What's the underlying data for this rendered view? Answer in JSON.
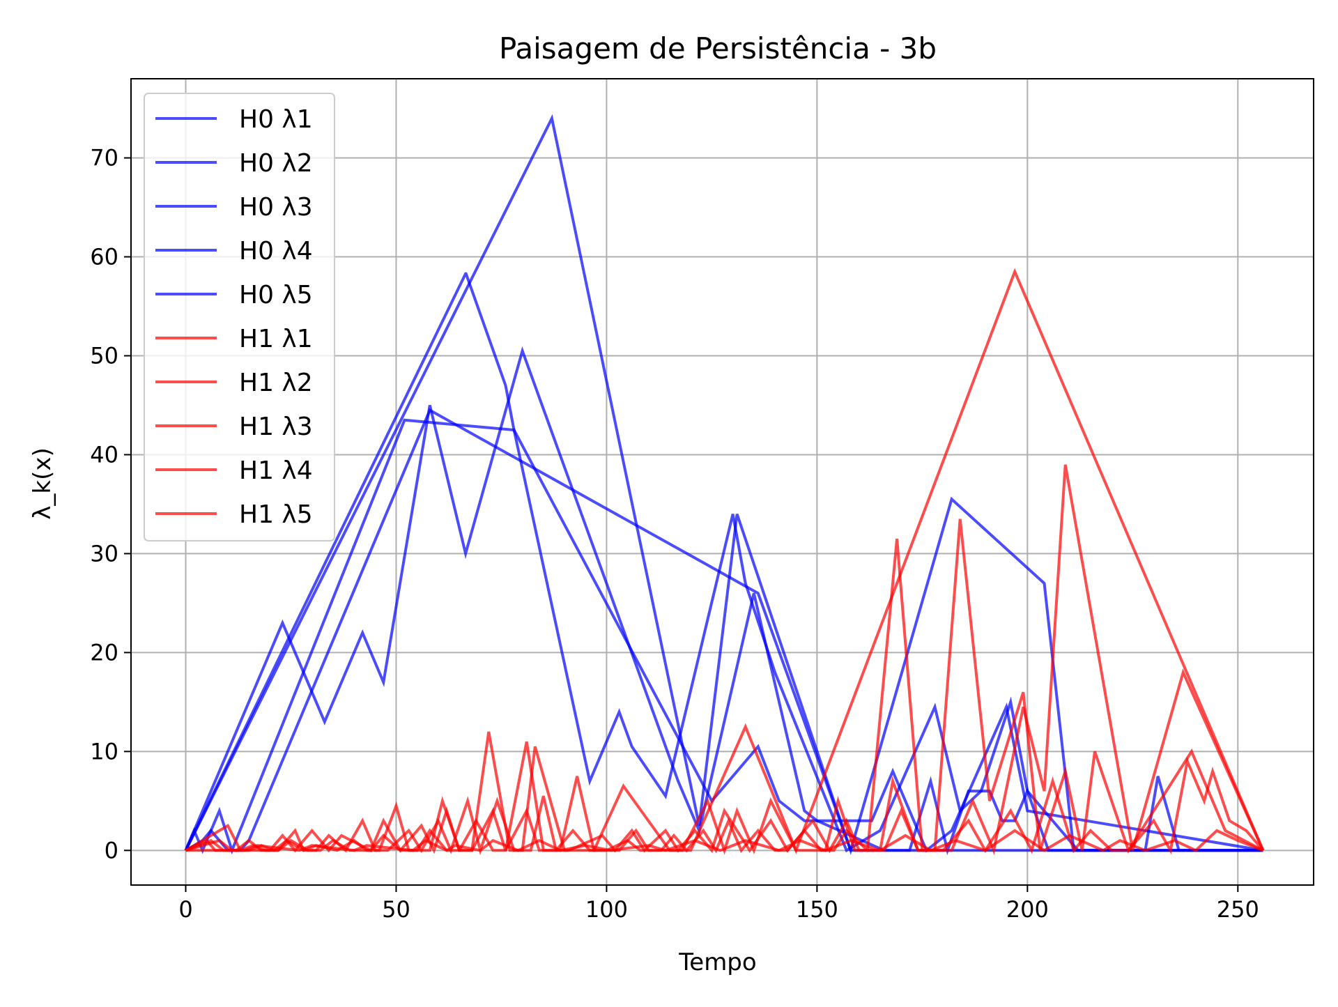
{
  "chart_data": {
    "type": "line",
    "title": "Paisagem de Persistência - 3b",
    "xlabel": "Tempo",
    "ylabel": "λ_k(x)",
    "xlim": [
      -13,
      268
    ],
    "ylim": [
      -3.5,
      78
    ],
    "xticks": [
      0,
      50,
      100,
      150,
      200,
      250
    ],
    "yticks": [
      0,
      10,
      20,
      30,
      40,
      50,
      60,
      70
    ],
    "grid": true,
    "legend_position": "upper-left",
    "colors": {
      "H0": "#0000ff",
      "H1": "#ff0000"
    },
    "series": [
      {
        "name": "H0 λ1",
        "group": "H0",
        "color": "#0000ff",
        "x": [
          0,
          87,
          122,
          131,
          154,
          158,
          182,
          204,
          211,
          256
        ],
        "y": [
          0,
          74,
          2.5,
          34,
          5,
          0,
          35.5,
          27,
          0,
          0
        ]
      },
      {
        "name": "H0 λ2",
        "group": "H0",
        "color": "#0000ff",
        "x": [
          0,
          66.5,
          66.6,
          76,
          78,
          96,
          103,
          106,
          114,
          130,
          133,
          140,
          157,
          165,
          178,
          184,
          189,
          196,
          200,
          212,
          256
        ],
        "y": [
          0,
          58.3,
          58.3,
          47,
          42.5,
          7,
          14,
          10.5,
          5.5,
          34,
          27,
          18,
          0,
          2,
          14.5,
          4,
          6,
          15,
          6,
          0,
          0
        ]
      },
      {
        "name": "H0 λ3",
        "group": "H0",
        "color": "#0000ff",
        "x": [
          0,
          23,
          33,
          42,
          47,
          58,
          66.5,
          80,
          117,
          122,
          135,
          147,
          150,
          166,
          172,
          177,
          181,
          186,
          191,
          194,
          197,
          200,
          205,
          228,
          231,
          236,
          256
        ],
        "y": [
          0,
          23,
          13,
          22,
          17,
          45,
          30,
          50.5,
          7,
          2,
          26,
          4,
          3,
          0,
          0,
          7,
          0,
          6,
          6,
          3,
          3,
          6,
          0,
          0,
          7.5,
          0,
          0
        ]
      },
      {
        "name": "H0 λ4",
        "group": "H0",
        "color": "#0000ff",
        "x": [
          0,
          2,
          4,
          8,
          11,
          52,
          78,
          125,
          136,
          141,
          147,
          163,
          168,
          176,
          182,
          195,
          200,
          256
        ],
        "y": [
          0,
          2,
          0,
          4,
          0,
          43.5,
          42.5,
          5,
          10.5,
          5,
          3,
          3,
          8,
          0,
          2,
          14.5,
          4,
          0
        ]
      },
      {
        "name": "H0 λ5",
        "group": "H0",
        "color": "#0000ff",
        "x": [
          0,
          4,
          6,
          8,
          10,
          13,
          15,
          58,
          136,
          158,
          169,
          256
        ],
        "y": [
          0,
          1,
          2,
          1,
          0,
          0,
          1,
          44.5,
          26,
          0,
          0,
          0
        ]
      },
      {
        "name": "H1 λ1",
        "group": "H1",
        "color": "#ff0000",
        "x": [
          0,
          10,
          13,
          20,
          23,
          26,
          30,
          34,
          37,
          44,
          47,
          51,
          56,
          59,
          62,
          65,
          68,
          72,
          77,
          80,
          83,
          90,
          97,
          104,
          115,
          120,
          133,
          145,
          197,
          256
        ],
        "y": [
          0,
          2.5,
          0,
          0,
          1.5,
          0,
          2,
          0,
          1.5,
          0,
          3,
          0,
          2.5,
          0,
          4,
          0,
          0,
          12,
          0,
          0,
          10.5,
          0,
          0,
          6.5,
          0,
          0,
          12.5,
          0,
          58.5,
          0
        ]
      },
      {
        "name": "H1 λ2",
        "group": "H1",
        "color": "#ff0000",
        "x": [
          0,
          8,
          11,
          15,
          18,
          21,
          24,
          28,
          31,
          36,
          40,
          43,
          46,
          50,
          53,
          58,
          61,
          65,
          68,
          73,
          76,
          81,
          85,
          89,
          93,
          97,
          103,
          107,
          110,
          118,
          124,
          128,
          131,
          135,
          139,
          145,
          152,
          155,
          159,
          162,
          169,
          175,
          182,
          187,
          192,
          199,
          204,
          209,
          225,
          237,
          256
        ],
        "y": [
          0,
          1,
          0,
          0,
          0.5,
          0,
          1,
          0,
          0.5,
          0,
          1,
          0,
          0,
          4.5,
          0,
          0,
          5,
          0,
          0,
          4,
          0,
          11,
          0,
          0,
          7.5,
          0,
          0,
          2,
          0,
          0,
          5,
          0,
          4,
          0,
          5,
          0,
          0,
          5,
          0,
          0,
          31.5,
          0,
          0,
          5,
          0,
          14.5,
          6,
          39,
          0,
          18,
          0
        ]
      },
      {
        "name": "H1 λ3",
        "group": "H1",
        "color": "#ff0000",
        "x": [
          0,
          5,
          7,
          12,
          15,
          18,
          22,
          26,
          28,
          31,
          34,
          38,
          42,
          45,
          48,
          53,
          56,
          60,
          63,
          67,
          70,
          74,
          78,
          82,
          85,
          88,
          91,
          99,
          102,
          106,
          109,
          114,
          117,
          121,
          125,
          128,
          134,
          139,
          143,
          149,
          153,
          157,
          160,
          165,
          168,
          174,
          178,
          184,
          191,
          199,
          203,
          209,
          213,
          216,
          224,
          239,
          247,
          256
        ],
        "y": [
          0,
          1,
          0,
          0,
          1,
          0,
          0,
          2,
          0,
          0,
          1.5,
          0,
          3,
          0,
          0,
          2,
          0,
          3,
          0,
          5,
          0,
          5,
          0,
          0,
          5.5,
          0,
          0,
          1.5,
          0,
          2,
          0,
          2,
          0,
          2,
          0,
          4,
          0,
          3,
          0,
          3,
          0,
          3,
          0,
          0,
          7,
          0,
          0,
          33.5,
          5,
          16,
          0,
          8,
          0,
          10,
          0,
          10,
          2,
          0
        ]
      },
      {
        "name": "H1 λ4",
        "group": "H1",
        "color": "#ff0000",
        "x": [
          0,
          6,
          9,
          13,
          16,
          19,
          22,
          25,
          29,
          32,
          35,
          39,
          44,
          47,
          51,
          55,
          58,
          62,
          65,
          69,
          73,
          76,
          81,
          84,
          88,
          92,
          96,
          100,
          105,
          108,
          113,
          116,
          119,
          123,
          126,
          129,
          132,
          136,
          140,
          143,
          147,
          151,
          154,
          157,
          162,
          166,
          170,
          174,
          180,
          186,
          190,
          196,
          201,
          206,
          211,
          215,
          220,
          224,
          230,
          234,
          238,
          242,
          244,
          248,
          252,
          256
        ],
        "y": [
          0,
          1,
          0,
          0,
          0.5,
          0,
          0,
          1,
          0,
          0,
          1,
          0,
          0,
          1.5,
          0,
          0,
          2,
          0,
          0,
          3,
          0,
          0,
          4,
          0,
          0,
          2,
          0,
          0,
          1,
          0,
          0,
          1.5,
          0,
          2,
          0,
          3,
          0,
          2,
          0,
          0,
          2,
          0,
          0,
          2,
          0,
          0,
          4,
          0,
          0,
          3,
          0,
          4,
          0,
          7,
          0,
          2,
          0,
          0,
          3,
          0,
          9,
          5,
          8,
          3,
          2,
          0
        ]
      },
      {
        "name": "H1 λ5",
        "group": "H1",
        "color": "#ff0000",
        "x": [
          0,
          14,
          17,
          27,
          30,
          40,
          43,
          54,
          57,
          62,
          64,
          70,
          73,
          79,
          84,
          89,
          95,
          101,
          110,
          114,
          121,
          127,
          133,
          141,
          146,
          152,
          158,
          165,
          171,
          177,
          183,
          190,
          197,
          204,
          210,
          218,
          222,
          228,
          235,
          240,
          245,
          250,
          256
        ],
        "y": [
          0,
          0,
          0.5,
          0,
          0.5,
          0,
          0.5,
          0,
          1,
          0,
          0.5,
          0,
          1,
          0,
          1,
          0,
          0.5,
          0,
          0.5,
          0,
          1,
          0,
          1,
          0,
          1,
          0,
          1,
          0,
          1.5,
          0,
          1,
          0,
          2,
          0,
          1.5,
          0,
          1,
          0,
          1,
          0,
          2,
          1,
          0
        ]
      }
    ]
  }
}
